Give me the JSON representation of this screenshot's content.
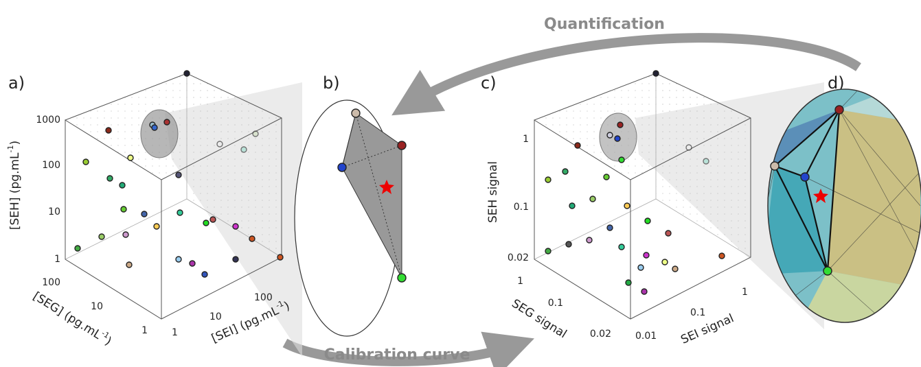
{
  "arrows": {
    "top": "Quantification",
    "bottom": "Calibration curve"
  },
  "panels": [
    {
      "label": "a)",
      "axes": {
        "vertical": {
          "title": {
            "text": "[SEH] (pg.mL",
            "sup": "-1",
            "close": ")"
          },
          "ticks": [
            "1000",
            "100",
            "10",
            "1"
          ]
        },
        "left": {
          "title": {
            "text": "[SEG] (pg.mL",
            "sup": "-1",
            "close": ")"
          },
          "ticks": [
            "100",
            "10",
            "1"
          ]
        },
        "right": {
          "title": {
            "text": "[SEI] (pg.mL",
            "sup": "-1",
            "close": ")"
          },
          "ticks": [
            "1",
            "10",
            "100"
          ]
        }
      }
    },
    {
      "label": "b)"
    },
    {
      "label": "c)",
      "axes": {
        "vertical": {
          "title": {
            "text": "SEH signal"
          },
          "ticks": [
            "1",
            "0.1",
            "0.02"
          ]
        },
        "left": {
          "title": {
            "text": "SEG signal"
          },
          "ticks": [
            "1",
            "0.1",
            "0.02"
          ]
        },
        "right": {
          "title": {
            "text": "SEI signal"
          },
          "ticks": [
            "0.01",
            "0.1",
            "1"
          ]
        }
      }
    },
    {
      "label": "d)"
    }
  ]
}
